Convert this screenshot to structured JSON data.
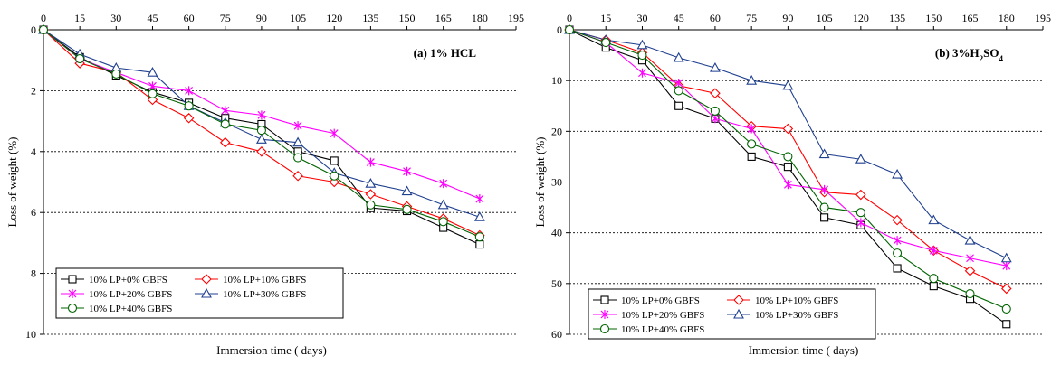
{
  "chart_data": [
    {
      "type": "line",
      "title": "(a) 1% HCL",
      "title_parts": [
        {
          "text": "(a) 1% HCL"
        }
      ],
      "xlabel": "Immersion time ( days)",
      "ylabel": "Loss of weight (%)",
      "x_axis_position": "top",
      "y_axis_inverted": true,
      "xlim": [
        0,
        195
      ],
      "ylim": [
        0,
        10
      ],
      "x_ticks": [
        "0",
        "15",
        "30",
        "45",
        "60",
        "75",
        "90",
        "105",
        "120",
        "135",
        "150",
        "165",
        "180",
        "195"
      ],
      "y_ticks": [
        "0",
        "2",
        "4",
        "6",
        "8",
        "10"
      ],
      "gridlines": "horizontal dashed",
      "legend_placement": "bottom-left",
      "x": [
        0,
        15,
        30,
        45,
        60,
        75,
        90,
        105,
        120,
        135,
        150,
        165,
        180
      ],
      "series": [
        {
          "name": "10% LP+0% GBFS",
          "color": "#000000",
          "marker": "square",
          "values": [
            0,
            0.9,
            1.5,
            2.05,
            2.4,
            2.9,
            3.1,
            4.0,
            4.3,
            5.85,
            5.95,
            6.5,
            7.05
          ]
        },
        {
          "name": "10% LP+10% GBFS",
          "color": "#ff0000",
          "marker": "diamond",
          "values": [
            0,
            1.1,
            1.4,
            2.3,
            2.9,
            3.7,
            4.0,
            4.8,
            5.0,
            5.4,
            5.8,
            6.2,
            6.75
          ]
        },
        {
          "name": "10% LP+20% GBFS",
          "color": "#ff00ff",
          "marker": "star",
          "values": [
            0,
            0.95,
            1.4,
            1.85,
            2.0,
            2.65,
            2.8,
            3.15,
            3.4,
            4.35,
            4.65,
            5.05,
            5.55
          ]
        },
        {
          "name": "10% LP+30% GBFS",
          "color": "#1f3f8f",
          "marker": "triangle",
          "values": [
            0,
            0.8,
            1.25,
            1.4,
            2.5,
            3.05,
            3.6,
            3.7,
            4.7,
            5.05,
            5.3,
            5.75,
            6.15
          ]
        },
        {
          "name": "10% LP+40% GBFS",
          "color": "#006400",
          "marker": "circle",
          "values": [
            0,
            0.95,
            1.45,
            2.1,
            2.5,
            3.1,
            3.3,
            4.2,
            4.8,
            5.75,
            5.9,
            6.3,
            6.8
          ]
        }
      ]
    },
    {
      "type": "line",
      "title": "(b) 3%H2SO4",
      "title_parts": [
        {
          "text": "(b) 3%H"
        },
        {
          "text": "2",
          "sub": true
        },
        {
          "text": "SO"
        },
        {
          "text": "4",
          "sub": true
        }
      ],
      "xlabel": "Immersion time ( days)",
      "ylabel": "Loss of weight (%)",
      "x_axis_position": "top",
      "y_axis_inverted": true,
      "xlim": [
        0,
        195
      ],
      "ylim": [
        0,
        60
      ],
      "x_ticks": [
        "0",
        "15",
        "30",
        "45",
        "60",
        "75",
        "90",
        "105",
        "120",
        "135",
        "150",
        "165",
        "180",
        "195"
      ],
      "y_ticks": [
        "0",
        "10",
        "20",
        "30",
        "40",
        "50",
        "60"
      ],
      "gridlines": "horizontal dashed",
      "legend_placement": "bottom-left",
      "x": [
        0,
        15,
        30,
        45,
        60,
        75,
        90,
        105,
        120,
        135,
        150,
        165,
        180
      ],
      "series": [
        {
          "name": "10% LP+0% GBFS",
          "color": "#000000",
          "marker": "square",
          "values": [
            0,
            3.5,
            6.0,
            15.0,
            17.5,
            25.0,
            27.0,
            37.0,
            38.5,
            47.0,
            50.5,
            53.0,
            58.0
          ]
        },
        {
          "name": "10% LP+10% GBFS",
          "color": "#ff0000",
          "marker": "diamond",
          "values": [
            0,
            2.0,
            4.5,
            11.0,
            12.5,
            19.0,
            19.5,
            32.0,
            32.5,
            37.5,
            43.5,
            47.5,
            51.0
          ]
        },
        {
          "name": "10% LP+20% GBFS",
          "color": "#ff00ff",
          "marker": "star",
          "values": [
            0,
            2.5,
            8.5,
            10.5,
            17.5,
            19.5,
            30.5,
            31.5,
            38.0,
            41.5,
            43.5,
            45.0,
            46.5
          ]
        },
        {
          "name": "10% LP+30% GBFS",
          "color": "#1f3f8f",
          "marker": "triangle",
          "values": [
            0,
            2.0,
            3.0,
            5.5,
            7.5,
            10.0,
            11.0,
            24.5,
            25.5,
            28.5,
            37.5,
            41.5,
            45.0
          ]
        },
        {
          "name": "10% LP+40% GBFS",
          "color": "#006400",
          "marker": "circle",
          "values": [
            0,
            2.5,
            5.0,
            12.0,
            16.0,
            22.5,
            25.0,
            35.0,
            36.0,
            44.0,
            49.0,
            52.0,
            55.0
          ]
        }
      ]
    }
  ]
}
